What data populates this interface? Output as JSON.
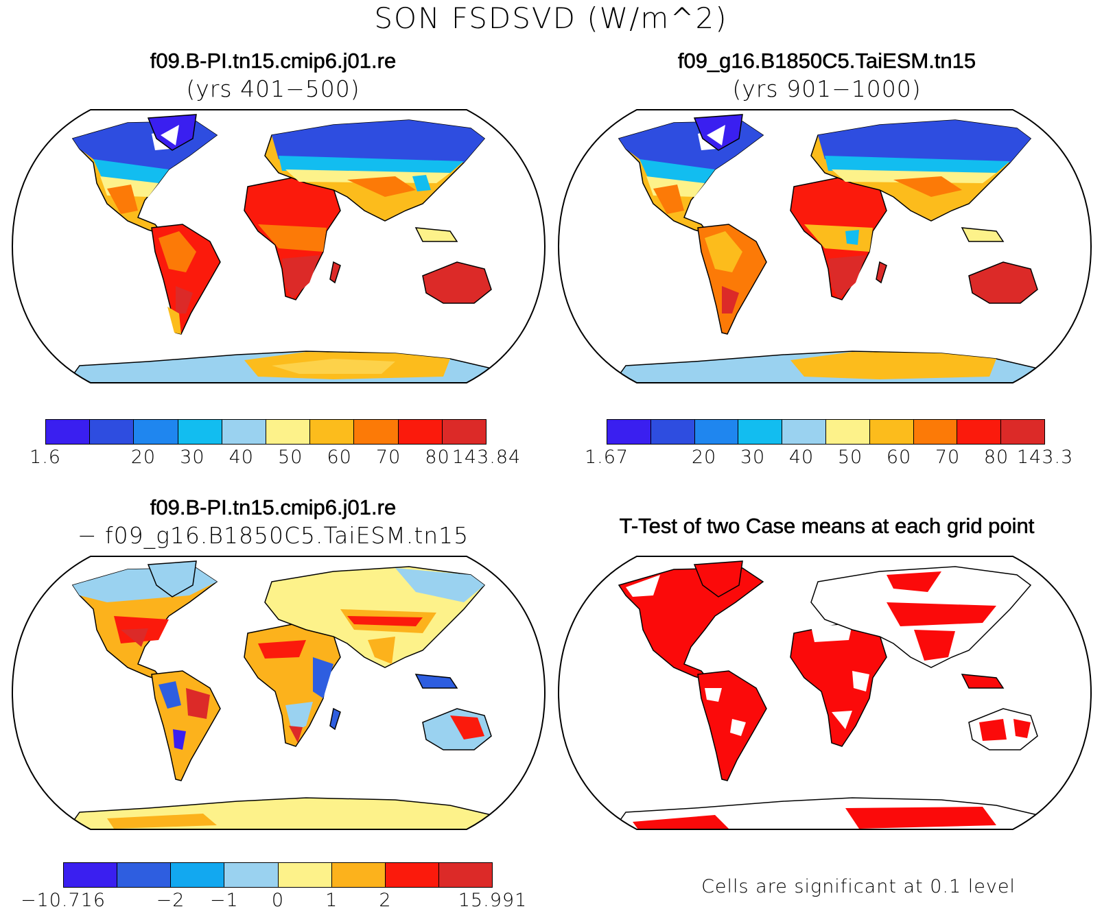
{
  "title": "SON FSDSVD (W/m^2)",
  "panels": {
    "case1": {
      "title": "f09.B-PI.tn15.cmip6.j01.re",
      "subtitle": "(yrs 401−500)",
      "colorbar": {
        "colors": [
          "#3a1ff0",
          "#2e4de0",
          "#1f86ef",
          "#12bdf0",
          "#9ad2f0",
          "#fdf28a",
          "#fcbc1c",
          "#fc7a07",
          "#fb1a0c",
          "#dc2a28"
        ],
        "labels": [
          "1.6",
          "",
          "20",
          "30",
          "40",
          "50",
          "60",
          "70",
          "80",
          "143.84"
        ]
      }
    },
    "case2": {
      "title": "f09_g16.B1850C5.TaiESM.tn15",
      "subtitle": "(yrs 901−1000)",
      "colorbar": {
        "colors": [
          "#3a1ff0",
          "#2e4de0",
          "#1f86ef",
          "#12bdf0",
          "#9ad2f0",
          "#fdf28a",
          "#fcbc1c",
          "#fc7a07",
          "#fb1a0c",
          "#dc2a28"
        ],
        "labels": [
          "1.67",
          "",
          "20",
          "30",
          "40",
          "50",
          "60",
          "70",
          "80",
          "143.3"
        ]
      }
    },
    "diff": {
      "title": "f09.B-PI.tn15.cmip6.j01.re",
      "subtitle": "− f09_g16.B1850C5.TaiESM.tn15",
      "colorbar": {
        "colors": [
          "#3a1ff0",
          "#2e5ee0",
          "#12a8f0",
          "#9ad2f0",
          "#fdf28a",
          "#fcb21c",
          "#fb1a0c",
          "#dc2a28"
        ],
        "labels": [
          "−10.716",
          "",
          "−2",
          "−1",
          "0",
          "1",
          "2",
          "",
          "15.991"
        ]
      }
    },
    "ttest": {
      "title": "T-Test of two Case means at each grid point",
      "footnote": "Cells are significant at 0.1 level"
    }
  }
}
